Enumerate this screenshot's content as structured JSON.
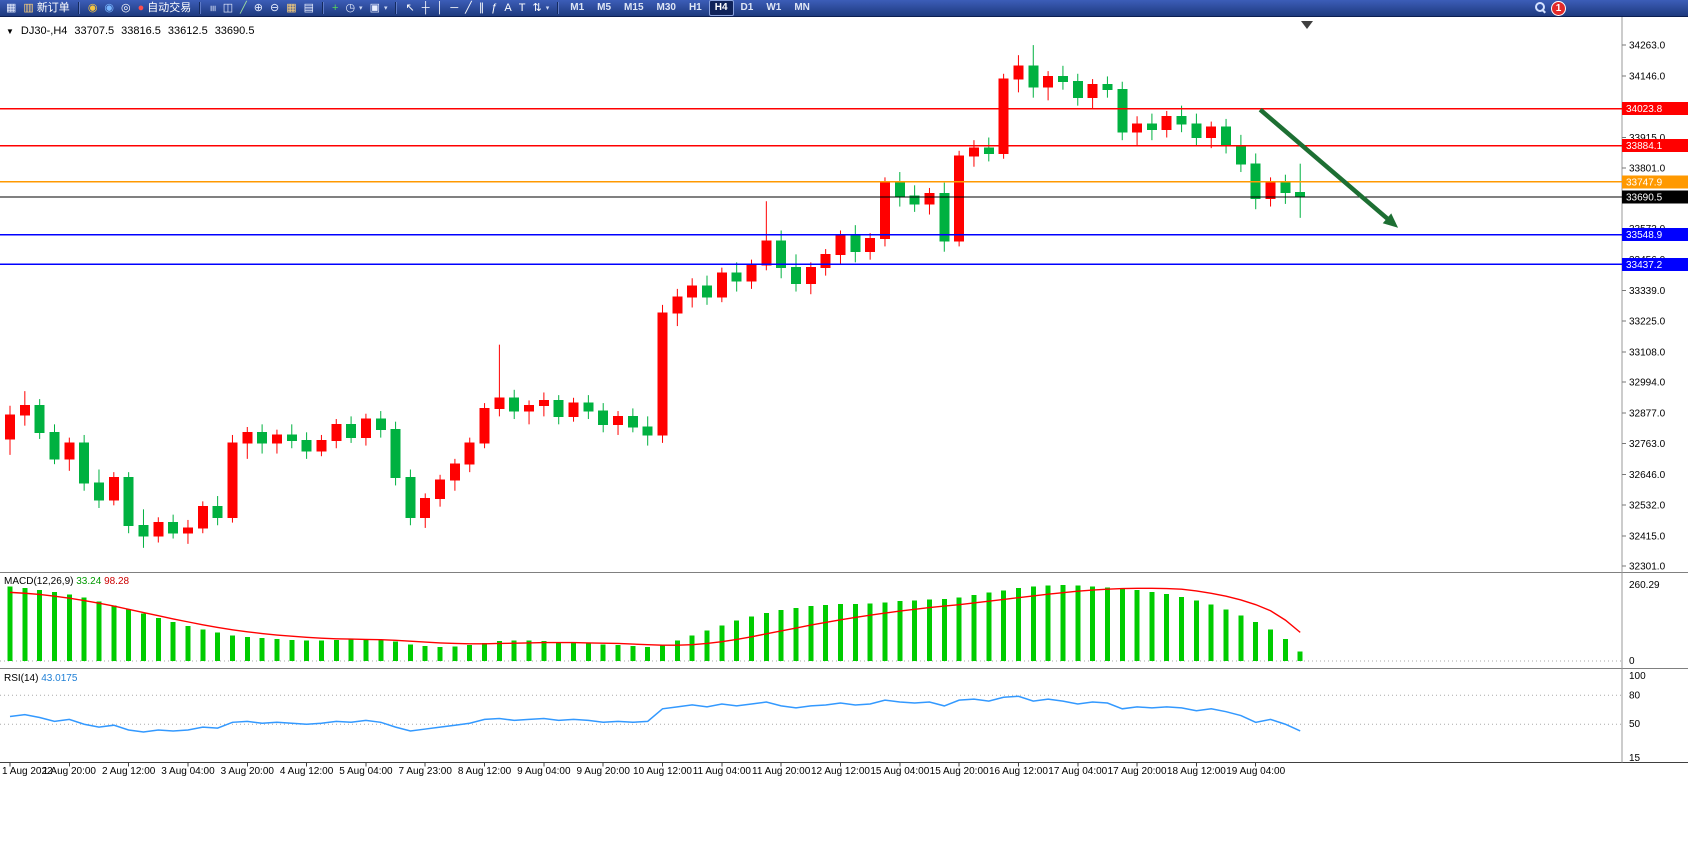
{
  "app": {
    "toolbar": {
      "badge_count": "1",
      "active_timeframe": "H4",
      "timeframes": [
        "M1",
        "M5",
        "M15",
        "M30",
        "H1",
        "H4",
        "D1",
        "W1",
        "MN"
      ],
      "items": [
        {
          "kind": "icon",
          "name": "new-chart-button",
          "icon": "chart-window-icon",
          "glyph": "▦",
          "color": "#e8eeff"
        },
        {
          "kind": "button",
          "name": "new-order-button",
          "icon": "new-order-icon",
          "glyph": "▥",
          "color": "#ffd27a",
          "label": "新订单"
        },
        {
          "kind": "sep"
        },
        {
          "kind": "icon",
          "name": "mql5-community-button",
          "icon": "compass-icon",
          "glyph": "◉",
          "color": "#f5c542"
        },
        {
          "kind": "icon",
          "name": "chat-button",
          "icon": "chat-bubble-icon",
          "glyph": "◉",
          "color": "#77b5ff"
        },
        {
          "kind": "icon",
          "name": "market-watch-button",
          "icon": "globe-icon",
          "glyph": "◎",
          "color": "#ffffff"
        },
        {
          "kind": "button",
          "name": "autotrading-button",
          "icon": "autotrading-icon",
          "glyph": "●",
          "color": "#ff4d4d",
          "label": "自动交易"
        },
        {
          "kind": "sep"
        },
        {
          "kind": "icon",
          "name": "bar-chart-button",
          "icon": "bar-chart-icon",
          "glyph": "≡",
          "color": "#e8eeff",
          "rot": true
        },
        {
          "kind": "icon",
          "name": "candlestick-chart-button",
          "icon": "candlestick-icon",
          "glyph": "◫",
          "color": "#e8eeff"
        },
        {
          "kind": "icon",
          "name": "line-chart-button",
          "icon": "line-chart-icon",
          "glyph": "╱",
          "color": "#9fe09f"
        },
        {
          "kind": "icon",
          "name": "zoom-in-button",
          "icon": "zoom-in-icon",
          "glyph": "⊕",
          "color": "#e8eeff"
        },
        {
          "kind": "icon",
          "name": "zoom-out-button",
          "icon": "zoom-out-icon",
          "glyph": "⊖",
          "color": "#e8eeff"
        },
        {
          "kind": "icon",
          "name": "tile-windows-button",
          "icon": "tile-windows-icon",
          "glyph": "▦",
          "color": "#ffd27a"
        },
        {
          "kind": "icon",
          "name": "indicator-list-button",
          "icon": "document-list-icon",
          "glyph": "▤",
          "color": "#e8eeff"
        },
        {
          "kind": "sep"
        },
        {
          "kind": "icon",
          "name": "indicators-button",
          "icon": "indicators-plus-icon",
          "glyph": "+",
          "color": "#58d858"
        },
        {
          "kind": "icon",
          "name": "periods-button",
          "icon": "clock-icon",
          "glyph": "◷",
          "color": "#e8eeff",
          "caret": true
        },
        {
          "kind": "icon",
          "name": "templates-button",
          "icon": "template-icon",
          "glyph": "▣",
          "color": "#e8eeff",
          "caret": true
        },
        {
          "kind": "sep"
        },
        {
          "kind": "icon",
          "name": "cursor-button",
          "icon": "cursor-icon",
          "glyph": "↖",
          "color": "#ffffff"
        },
        {
          "kind": "icon",
          "name": "crosshair-button",
          "icon": "crosshair-icon",
          "glyph": "┼",
          "color": "#ffffff"
        },
        {
          "kind": "icon",
          "name": "vertical-line-button",
          "icon": "vertical-line-icon",
          "glyph": "│",
          "color": "#ffffff"
        },
        {
          "kind": "icon",
          "name": "horizontal-line-button",
          "icon": "horizontal-line-icon",
          "glyph": "─",
          "color": "#ffffff"
        },
        {
          "kind": "icon",
          "name": "trendline-button",
          "icon": "trendline-icon",
          "glyph": "╱",
          "color": "#ffffff"
        },
        {
          "kind": "icon",
          "name": "channel-button",
          "icon": "channel-icon",
          "glyph": "∥",
          "color": "#ffffff"
        },
        {
          "kind": "icon",
          "name": "fibonacci-button",
          "icon": "fibonacci-icon",
          "glyph": "ƒ",
          "color": "#ffffff"
        },
        {
          "kind": "icon",
          "name": "text-button",
          "icon": "text-icon",
          "glyph": "A",
          "color": "#ffffff"
        },
        {
          "kind": "icon",
          "name": "label-button",
          "icon": "text-label-icon",
          "glyph": "T",
          "color": "#ffffff"
        },
        {
          "kind": "icon",
          "name": "arrows-button",
          "icon": "arrows-icon",
          "glyph": "⇅",
          "color": "#ffffff",
          "caret": true
        },
        {
          "kind": "sep"
        },
        {
          "kind": "timeframes"
        },
        {
          "kind": "spacer"
        },
        {
          "kind": "search",
          "name": "search-button"
        },
        {
          "kind": "badge",
          "name": "notification-badge"
        },
        {
          "kind": "pad"
        }
      ]
    }
  },
  "chart": {
    "quote": {
      "dropdown_glyph": "▼",
      "symbol_period": "DJ30-,H4",
      "open": "33707.5",
      "high": "33816.5",
      "low": "33612.5",
      "close": "33690.5"
    },
    "colors": {
      "bull": "#ff0000",
      "bear": "#00b140",
      "macd_histogram": "#00cc00",
      "macd_signal": "#ff0000",
      "rsi_line": "#3399ff",
      "arrow": "#1d6f33",
      "line_red": "#ff0000",
      "line_orange": "#ff9900",
      "line_blue": "#0000ff",
      "line_black": "#000000",
      "axis_text": "#000000"
    }
  },
  "chart_data": {
    "type": "candlestick",
    "symbol": "DJ30-",
    "timeframe": "H4",
    "label_every_n_bars": 4,
    "x_labels": [
      "1 Aug 2022",
      "1 Aug 20:00",
      "2 Aug 12:00",
      "3 Aug 04:00",
      "3 Aug 20:00",
      "4 Aug 12:00",
      "5 Aug 04:00",
      "7 Aug 23:00",
      "8 Aug 12:00",
      "9 Aug 04:00",
      "9 Aug 20:00",
      "10 Aug 12:00",
      "11 Aug 04:00",
      "11 Aug 20:00",
      "12 Aug 12:00",
      "15 Aug 04:00",
      "15 Aug 20:00",
      "16 Aug 12:00",
      "17 Aug 04:00",
      "17 Aug 20:00",
      "18 Aug 12:00",
      "19 Aug 04:00"
    ],
    "price_axis_labels": [
      "34263.0",
      "34146.0",
      "34029.0",
      "33915.0",
      "33801.0",
      "33687.0",
      "33573.0",
      "33456.0",
      "33339.0",
      "33225.0",
      "33108.0",
      "32994.0",
      "32877.0",
      "32763.0",
      "32646.0",
      "32532.0",
      "32415.0",
      "32301.0"
    ],
    "horizontal_lines": [
      {
        "price": 34023.8,
        "label": "34023.8",
        "color": "#ff0000",
        "kind": "resistance-line"
      },
      {
        "price": 33884.1,
        "label": "33884.1",
        "color": "#ff0000",
        "kind": "resistance-line"
      },
      {
        "price": 33747.9,
        "label": "33747.9",
        "color": "#ff9900",
        "kind": "level-line"
      },
      {
        "price": 33690.5,
        "label": "33690.5",
        "color": "#000000",
        "kind": "current-price-line"
      },
      {
        "price": 33548.9,
        "label": "33548.9",
        "color": "#0000ff",
        "kind": "support-line"
      },
      {
        "price": 33437.2,
        "label": "33437.2",
        "color": "#0000ff",
        "kind": "support-line"
      }
    ],
    "annotation_arrow": {
      "from_bar": 84.3,
      "from_price": 34020,
      "to_bar": 93.6,
      "to_price": 33575,
      "color": "#1d6f33"
    },
    "candles": [
      [
        32780,
        32905,
        32720,
        32870
      ],
      [
        32870,
        32960,
        32830,
        32905
      ],
      [
        32905,
        32930,
        32780,
        32805
      ],
      [
        32805,
        32835,
        32685,
        32705
      ],
      [
        32705,
        32785,
        32660,
        32765
      ],
      [
        32765,
        32795,
        32585,
        32615
      ],
      [
        32615,
        32665,
        32520,
        32550
      ],
      [
        32550,
        32655,
        32530,
        32635
      ],
      [
        32635,
        32655,
        32425,
        32455
      ],
      [
        32455,
        32515,
        32370,
        32415
      ],
      [
        32415,
        32485,
        32390,
        32465
      ],
      [
        32465,
        32495,
        32405,
        32425
      ],
      [
        32425,
        32475,
        32385,
        32445
      ],
      [
        32445,
        32545,
        32425,
        32525
      ],
      [
        32525,
        32565,
        32455,
        32485
      ],
      [
        32485,
        32795,
        32465,
        32765
      ],
      [
        32765,
        32825,
        32705,
        32805
      ],
      [
        32805,
        32835,
        32725,
        32765
      ],
      [
        32765,
        32815,
        32725,
        32795
      ],
      [
        32795,
        32835,
        32745,
        32775
      ],
      [
        32775,
        32805,
        32705,
        32735
      ],
      [
        32735,
        32795,
        32715,
        32775
      ],
      [
        32775,
        32855,
        32745,
        32835
      ],
      [
        32835,
        32865,
        32765,
        32785
      ],
      [
        32785,
        32875,
        32755,
        32855
      ],
      [
        32855,
        32885,
        32785,
        32815
      ],
      [
        32815,
        32845,
        32605,
        32635
      ],
      [
        32635,
        32665,
        32455,
        32485
      ],
      [
        32485,
        32575,
        32445,
        32555
      ],
      [
        32555,
        32645,
        32525,
        32625
      ],
      [
        32625,
        32705,
        32585,
        32685
      ],
      [
        32685,
        32785,
        32655,
        32765
      ],
      [
        32765,
        32915,
        32745,
        32895
      ],
      [
        32895,
        33135,
        32865,
        32935
      ],
      [
        32935,
        32965,
        32855,
        32885
      ],
      [
        32885,
        32925,
        32835,
        32905
      ],
      [
        32905,
        32955,
        32865,
        32925
      ],
      [
        32925,
        32945,
        32835,
        32865
      ],
      [
        32865,
        32935,
        32845,
        32915
      ],
      [
        32915,
        32945,
        32855,
        32885
      ],
      [
        32885,
        32915,
        32805,
        32835
      ],
      [
        32835,
        32885,
        32795,
        32865
      ],
      [
        32865,
        32895,
        32805,
        32825
      ],
      [
        32825,
        32865,
        32755,
        32795
      ],
      [
        32795,
        33285,
        32765,
        33255
      ],
      [
        33255,
        33345,
        33205,
        33315
      ],
      [
        33315,
        33385,
        33275,
        33355
      ],
      [
        33355,
        33395,
        33285,
        33315
      ],
      [
        33315,
        33425,
        33295,
        33405
      ],
      [
        33405,
        33445,
        33335,
        33375
      ],
      [
        33375,
        33455,
        33345,
        33435
      ],
      [
        33435,
        33675,
        33415,
        33525
      ],
      [
        33525,
        33565,
        33385,
        33425
      ],
      [
        33425,
        33475,
        33335,
        33365
      ],
      [
        33365,
        33445,
        33325,
        33425
      ],
      [
        33425,
        33495,
        33395,
        33475
      ],
      [
        33475,
        33565,
        33435,
        33545
      ],
      [
        33545,
        33585,
        33445,
        33485
      ],
      [
        33485,
        33555,
        33455,
        33535
      ],
      [
        33535,
        33765,
        33505,
        33745
      ],
      [
        33745,
        33785,
        33655,
        33695
      ],
      [
        33695,
        33735,
        33635,
        33665
      ],
      [
        33665,
        33725,
        33625,
        33705
      ],
      [
        33705,
        33745,
        33485,
        33525
      ],
      [
        33525,
        33865,
        33505,
        33845
      ],
      [
        33845,
        33905,
        33805,
        33875
      ],
      [
        33875,
        33915,
        33825,
        33855
      ],
      [
        33855,
        34155,
        33835,
        34135
      ],
      [
        34135,
        34225,
        34085,
        34185
      ],
      [
        34185,
        34263,
        34065,
        34105
      ],
      [
        34105,
        34165,
        34055,
        34145
      ],
      [
        34145,
        34185,
        34095,
        34125
      ],
      [
        34125,
        34155,
        34035,
        34065
      ],
      [
        34065,
        34135,
        34025,
        34115
      ],
      [
        34115,
        34145,
        34065,
        34095
      ],
      [
        34095,
        34125,
        33905,
        33935
      ],
      [
        33935,
        33995,
        33885,
        33965
      ],
      [
        33965,
        34005,
        33905,
        33945
      ],
      [
        33945,
        34015,
        33915,
        33995
      ],
      [
        33995,
        34035,
        33935,
        33965
      ],
      [
        33965,
        34005,
        33885,
        33915
      ],
      [
        33915,
        33975,
        33875,
        33955
      ],
      [
        33955,
        33985,
        33855,
        33885
      ],
      [
        33885,
        33925,
        33785,
        33815
      ],
      [
        33815,
        33855,
        33645,
        33685
      ],
      [
        33685,
        33765,
        33655,
        33745
      ],
      [
        33745,
        33775,
        33665,
        33707.5
      ],
      [
        33707.5,
        33816.5,
        33612.5,
        33690.5
      ]
    ],
    "indicators": {
      "macd": {
        "name": "MACD(12,26,9)",
        "current_main": "33.24",
        "current_signal": "98.28",
        "axis_max": "260.29",
        "axis_min": "0",
        "histogram": [
          255,
          250,
          244,
          236,
          227,
          217,
          204,
          190,
          176,
          162,
          148,
          134,
          120,
          108,
          97,
          88,
          82,
          78,
          75,
          72,
          70,
          70,
          72,
          73,
          74,
          72,
          66,
          57,
          51,
          48,
          50,
          55,
          62,
          68,
          70,
          70,
          68,
          65,
          62,
          60,
          57,
          55,
          52,
          48,
          55,
          70,
          88,
          105,
          122,
          138,
          152,
          165,
          175,
          182,
          188,
          192,
          195,
          196,
          197,
          200,
          205,
          208,
          210,
          212,
          218,
          226,
          234,
          242,
          250,
          256,
          259,
          260,
          258,
          255,
          252,
          248,
          243,
          237,
          230,
          220,
          208,
          193,
          176,
          156,
          133,
          108,
          75,
          33
        ],
        "signal": [
          235,
          232,
          228,
          222,
          215,
          207,
          198,
          188,
          177,
          166,
          155,
          144,
          134,
          124,
          115,
          107,
          100,
          94,
          89,
          85,
          81,
          78,
          76,
          75,
          74,
          73,
          71,
          68,
          65,
          62,
          60,
          59,
          59,
          60,
          61,
          62,
          63,
          63,
          63,
          62,
          61,
          60,
          58,
          56,
          54,
          54,
          56,
          60,
          66,
          74,
          83,
          93,
          103,
          113,
          123,
          132,
          141,
          149,
          157,
          164,
          171,
          177,
          183,
          188,
          193,
          199,
          205,
          211,
          217,
          223,
          229,
          234,
          239,
          243,
          246,
          248,
          249,
          249,
          248,
          246,
          240,
          232,
          222,
          209,
          193,
          172,
          140,
          98
        ]
      },
      "rsi": {
        "name": "RSI(14)",
        "current": "43.0175",
        "axis_labels": [
          "100",
          "80",
          "50",
          "15"
        ],
        "levels": [
          80,
          50
        ],
        "values": [
          58,
          60,
          57,
          53,
          55,
          50,
          47,
          49,
          44,
          42,
          44,
          43,
          44,
          47,
          46,
          52,
          53,
          51,
          52,
          51,
          50,
          51,
          53,
          52,
          54,
          52,
          47,
          43,
          45,
          47,
          49,
          51,
          55,
          56,
          54,
          55,
          56,
          54,
          55,
          54,
          52,
          53,
          52,
          53,
          66,
          68,
          70,
          68,
          71,
          69,
          71,
          73,
          69,
          67,
          69,
          70,
          72,
          70,
          71,
          75,
          73,
          72,
          73,
          69,
          75,
          76,
          74,
          78,
          79,
          74,
          76,
          74,
          71,
          73,
          72,
          66,
          68,
          67,
          68,
          67,
          64,
          66,
          63,
          59,
          52,
          55,
          50,
          43
        ]
      }
    }
  }
}
